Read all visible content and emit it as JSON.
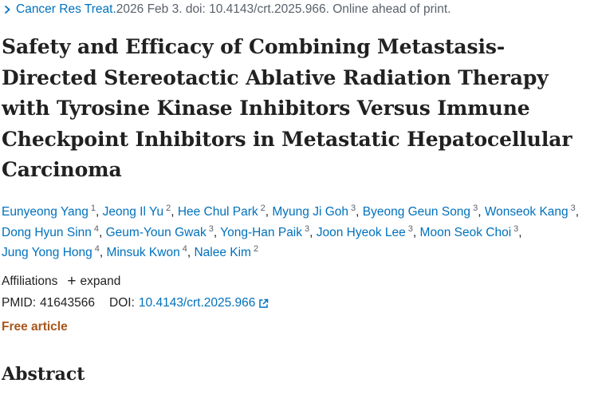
{
  "citation": {
    "journal": "Cancer Res Treat.",
    "rest": " 2026 Feb 3. doi: 10.4143/crt.2025.966. Online ahead of print."
  },
  "title": "Safety and Efficacy of Combining Metastasis-Directed Stereotactic Ablative Radiation Therapy with Tyrosine Kinase Inhibitors Versus Immune Checkpoint Inhibitors in Metastatic Hepatocellular Carcinoma",
  "authors": [
    {
      "name": "Eunyeong Yang",
      "aff": "1"
    },
    {
      "name": "Jeong Il Yu",
      "aff": "2"
    },
    {
      "name": "Hee Chul Park",
      "aff": "2"
    },
    {
      "name": "Myung Ji Goh",
      "aff": "3"
    },
    {
      "name": "Byeong Geun Song",
      "aff": "3"
    },
    {
      "name": "Wonseok Kang",
      "aff": "3"
    },
    {
      "name": "Dong Hyun Sinn",
      "aff": "4"
    },
    {
      "name": "Geum-Youn Gwak",
      "aff": "3"
    },
    {
      "name": "Yong-Han Paik",
      "aff": "3"
    },
    {
      "name": "Joon Hyeok Lee",
      "aff": "3"
    },
    {
      "name": "Moon Seok Choi",
      "aff": "3"
    },
    {
      "name": "Jung Yong Hong",
      "aff": "4"
    },
    {
      "name": "Minsuk Kwon",
      "aff": "4"
    },
    {
      "name": "Nalee Kim",
      "aff": "2"
    }
  ],
  "affiliations": {
    "label": "Affiliations",
    "expand_label": "expand"
  },
  "ids": {
    "pmid_label": "PMID:",
    "pmid": "41643566",
    "doi_label": "DOI:",
    "doi": "10.4143/crt.2025.966"
  },
  "free_article": "Free article",
  "abstract_heading": "Abstract",
  "colors": {
    "link": "#0071bc",
    "free": "#a9561a",
    "text": "#212121",
    "muted": "#5b616b"
  }
}
